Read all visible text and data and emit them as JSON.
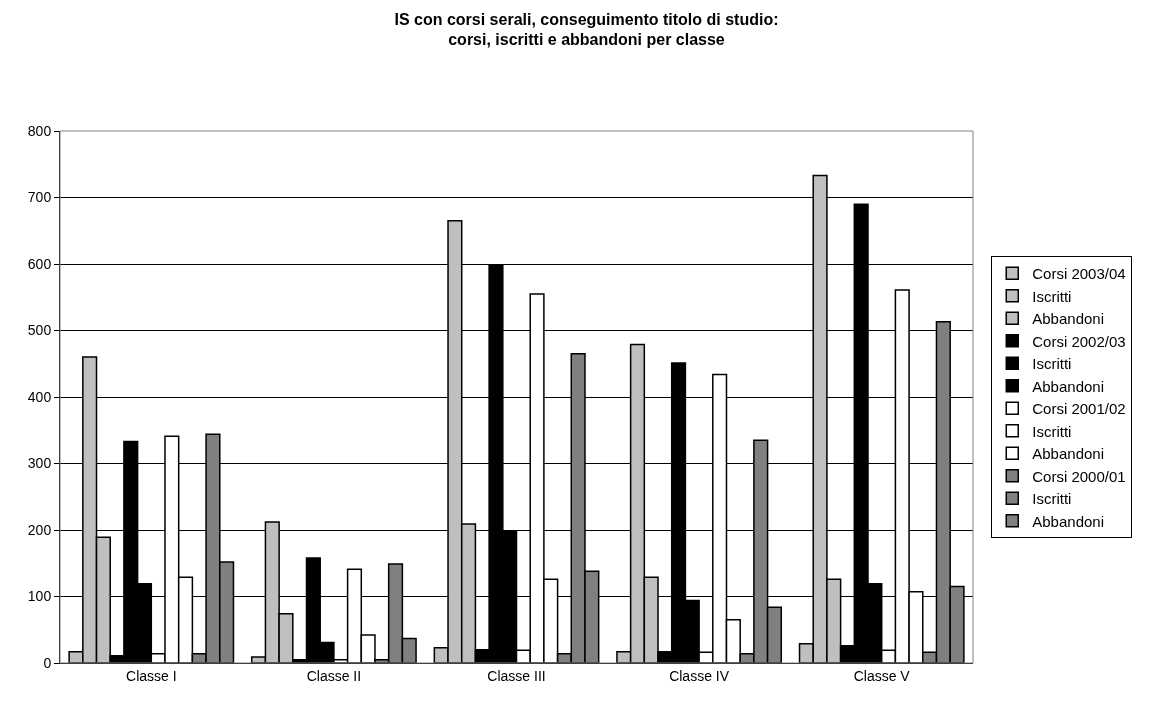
{
  "chart_data": {
    "type": "bar",
    "title": "IS con corsi serali, conseguimento titolo di studio:\ncorsi, iscritti e abbandoni per classe",
    "categories": [
      "Classe I",
      "Classe II",
      "Classe III",
      "Classe IV",
      "Classe V"
    ],
    "series": [
      {
        "name": "Corsi 2003/04",
        "color": "#bfbfbf",
        "values": [
          17,
          9,
          23,
          17,
          29
        ]
      },
      {
        "name": "Iscritti",
        "color": "#bfbfbf",
        "values": [
          460,
          212,
          665,
          479,
          733
        ]
      },
      {
        "name": "Abbandoni",
        "color": "#bfbfbf",
        "values": [
          189,
          74,
          209,
          129,
          126
        ]
      },
      {
        "name": "Corsi 2002/03",
        "color": "#000000",
        "values": [
          11,
          5,
          20,
          17,
          26
        ]
      },
      {
        "name": "Iscritti",
        "color": "#000000",
        "values": [
          333,
          158,
          598,
          451,
          690
        ]
      },
      {
        "name": "Abbandoni",
        "color": "#000000",
        "values": [
          119,
          31,
          198,
          94,
          119
        ]
      },
      {
        "name": "Corsi 2001/02",
        "color": "#ffffff",
        "values": [
          14,
          5,
          19,
          16,
          19
        ]
      },
      {
        "name": "Iscritti",
        "color": "#ffffff",
        "values": [
          341,
          141,
          555,
          434,
          561
        ]
      },
      {
        "name": "Abbandoni",
        "color": "#ffffff",
        "values": [
          129,
          42,
          126,
          65,
          107
        ]
      },
      {
        "name": "Corsi 2000/01",
        "color": "#808080",
        "values": [
          14,
          5,
          14,
          14,
          16
        ]
      },
      {
        "name": "Iscritti",
        "color": "#808080",
        "values": [
          344,
          149,
          465,
          335,
          513
        ]
      },
      {
        "name": "Abbandoni",
        "color": "#808080",
        "values": [
          152,
          37,
          138,
          84,
          115
        ]
      }
    ],
    "ylim": [
      0,
      800
    ],
    "yticks": [
      0,
      100,
      200,
      300,
      400,
      500,
      600,
      700,
      800
    ],
    "grid": "y",
    "legend": "right"
  }
}
